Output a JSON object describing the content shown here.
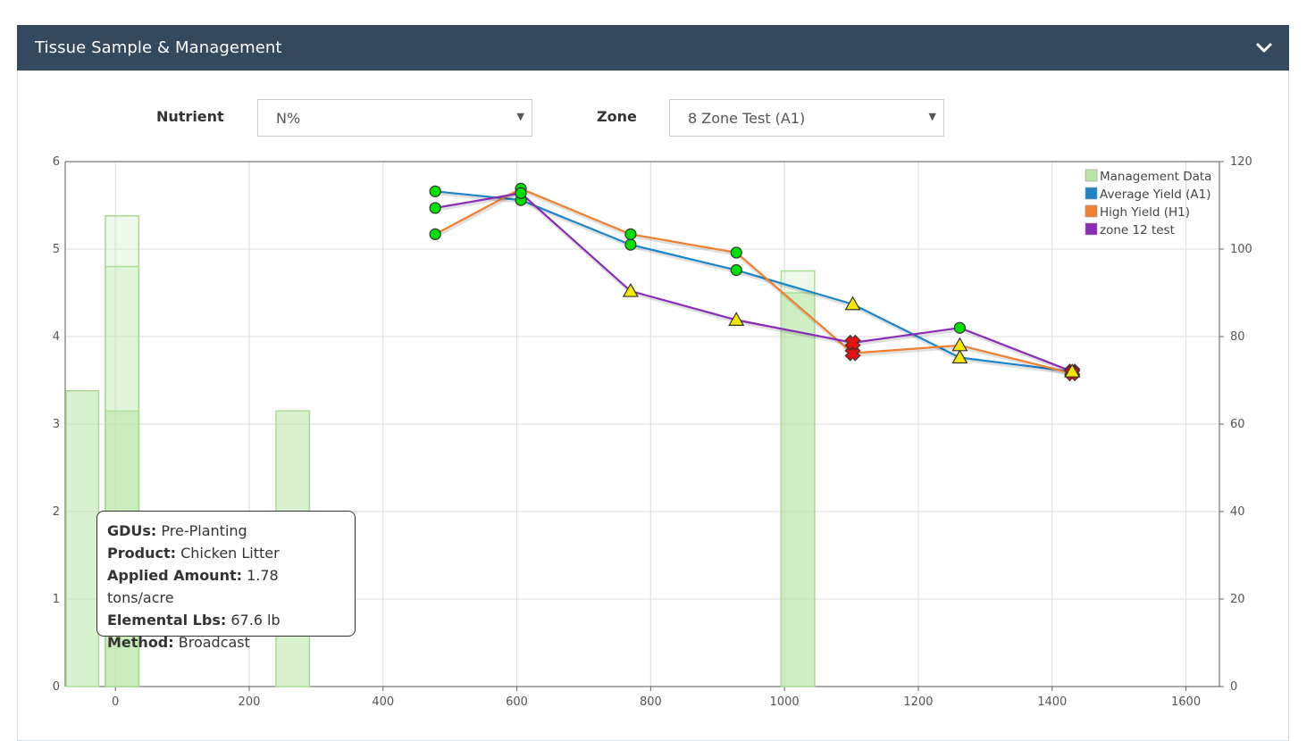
{
  "panel": {
    "title": "Tissue Sample & Management",
    "collapse_icon": "chevron-down-icon"
  },
  "filters": {
    "nutrient_label": "Nutrient",
    "nutrient_value": "N%",
    "zone_label": "Zone",
    "zone_value": "8 Zone Test (A1)"
  },
  "tooltip": {
    "rows": [
      {
        "key": "GDUs:",
        "value": "Pre-Planting"
      },
      {
        "key": "Product:",
        "value": "Chicken Litter"
      },
      {
        "key": "Applied Amount:",
        "value": "1.78 tons/acre"
      },
      {
        "key": "Elemental Lbs:",
        "value": "67.6 lb"
      },
      {
        "key": "Method:",
        "value": "Broadcast"
      }
    ]
  },
  "chart_data": {
    "type": "line",
    "xlim": [
      -75,
      1650
    ],
    "ylim_left": [
      0,
      6
    ],
    "ylim_right": [
      0,
      120
    ],
    "x_ticks": [
      "0",
      "200",
      "400",
      "600",
      "800",
      "1000",
      "1200",
      "1400",
      "1600"
    ],
    "y_left_ticks": [
      "0",
      "1",
      "2",
      "3",
      "4",
      "5",
      "6"
    ],
    "y_right_ticks": [
      "0",
      "20",
      "40",
      "60",
      "80",
      "100",
      "120"
    ],
    "grid": true,
    "legend_position": "top-right",
    "colors": {
      "management": "#b8e6a6",
      "average": "#1a85c8",
      "high": "#f07f2e",
      "zone12": "#8a2bb8",
      "marker_ok": "#00e000",
      "marker_warn": "#f5e800",
      "marker_bad": "#e81010"
    },
    "bars": {
      "name": "Management Data",
      "items": [
        {
          "x": -50,
          "values": [
            3.38
          ]
        },
        {
          "x": 10,
          "values": [
            3.15,
            4.8,
            5.38
          ]
        },
        {
          "x": 265,
          "values": [
            3.15
          ]
        },
        {
          "x": 1020,
          "values": [
            4.5,
            4.75
          ]
        }
      ]
    },
    "series": [
      {
        "name": "Average Yield (A1)",
        "points": [
          {
            "x": 478,
            "y": 5.66,
            "m": "ok"
          },
          {
            "x": 606,
            "y": 5.56,
            "m": "ok"
          },
          {
            "x": 770,
            "y": 5.05,
            "m": "ok"
          },
          {
            "x": 928,
            "y": 4.76,
            "m": "ok"
          },
          {
            "x": 1102,
            "y": 4.37,
            "m": "warn"
          },
          {
            "x": 1262,
            "y": 3.76,
            "m": "warn"
          },
          {
            "x": 1430,
            "y": 3.6,
            "m": "bad"
          }
        ]
      },
      {
        "name": "High Yield (H1)",
        "points": [
          {
            "x": 478,
            "y": 5.17,
            "m": "ok"
          },
          {
            "x": 606,
            "y": 5.69,
            "m": "ok"
          },
          {
            "x": 770,
            "y": 5.17,
            "m": "ok"
          },
          {
            "x": 928,
            "y": 4.96,
            "m": "ok"
          },
          {
            "x": 1102,
            "y": 3.81,
            "m": "bad"
          },
          {
            "x": 1262,
            "y": 3.9,
            "m": "warn"
          },
          {
            "x": 1430,
            "y": 3.58,
            "m": "bad"
          }
        ]
      },
      {
        "name": "zone 12 test",
        "points": [
          {
            "x": 478,
            "y": 5.47,
            "m": "ok"
          },
          {
            "x": 606,
            "y": 5.64,
            "m": "ok"
          },
          {
            "x": 770,
            "y": 4.52,
            "m": "warn"
          },
          {
            "x": 928,
            "y": 4.19,
            "m": "warn"
          },
          {
            "x": 1102,
            "y": 3.93,
            "m": "bad"
          },
          {
            "x": 1262,
            "y": 4.1,
            "m": "ok"
          },
          {
            "x": 1430,
            "y": 3.6,
            "m": "warn"
          }
        ]
      }
    ]
  }
}
